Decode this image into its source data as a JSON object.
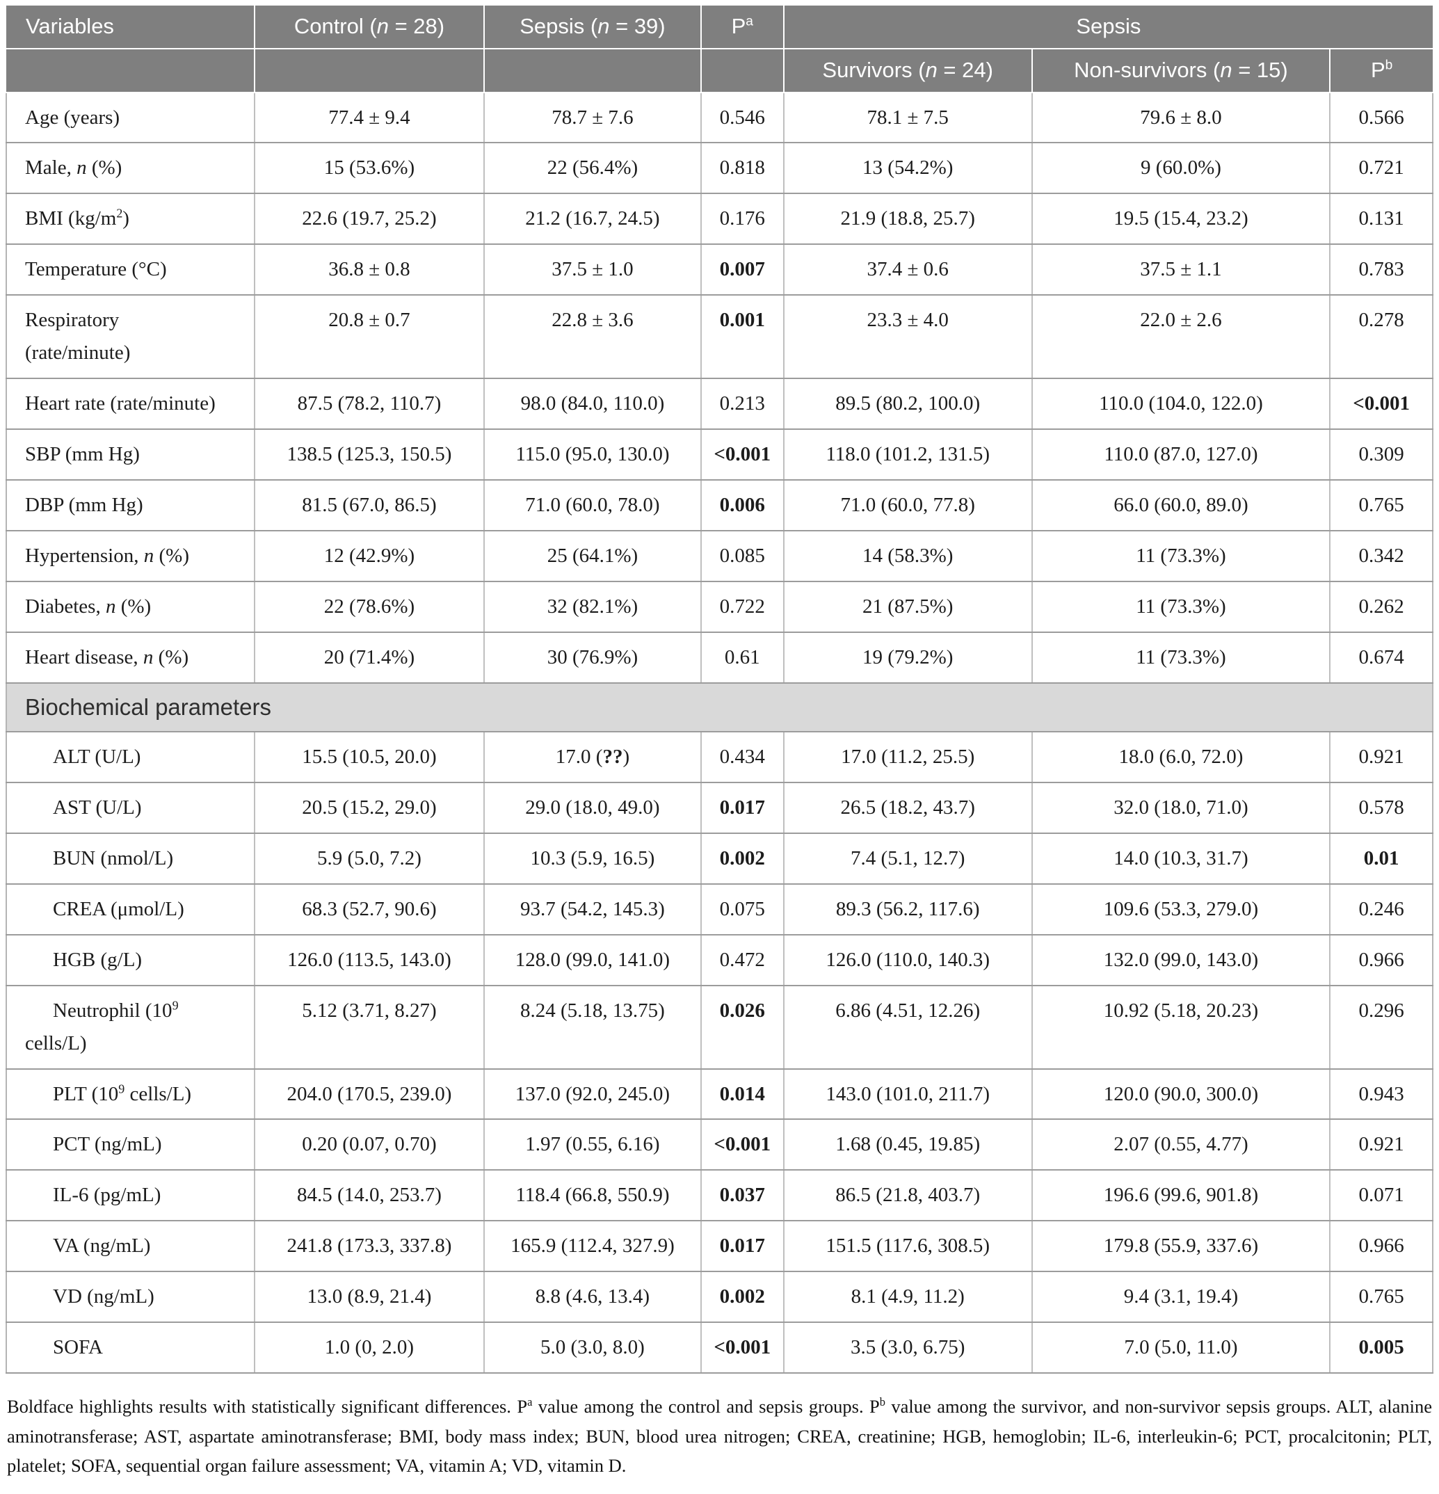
{
  "table": {
    "header": {
      "variables": "Variables",
      "control": "Control (*n* = 28)",
      "sepsis": "Sepsis (*n* = 39)",
      "p_a": "P^a^",
      "sepsis_group": "Sepsis",
      "survivors": "Survivors (*n* = 24)",
      "non_survivors": "Non-survivors (*n* = 15)",
      "p_b": "P^b^"
    },
    "columns": [
      "Variables",
      "Control (n = 28)",
      "Sepsis (n = 39)",
      "Pa",
      "Sepsis Survivors (n = 24)",
      "Sepsis Non-survivors (n = 15)",
      "Pb"
    ],
    "rows": [
      {
        "label": "Age (years)",
        "indent": false,
        "values": [
          "77.4 ± 9.4",
          "78.7 ± 7.6",
          "0.546",
          "78.1 ± 7.5",
          "79.6 ± 8.0",
          "0.566"
        ]
      },
      {
        "label": "Male, *n* (%)",
        "indent": false,
        "values": [
          "15 (53.6%)",
          "22 (56.4%)",
          "0.818",
          "13 (54.2%)",
          "9 (60.0%)",
          "0.721"
        ]
      },
      {
        "label": "BMI (kg/m^2^)",
        "indent": false,
        "values": [
          "22.6 (19.7, 25.2)",
          "21.2 (16.7, 24.5)",
          "0.176",
          "21.9 (18.8, 25.7)",
          "19.5 (15.4, 23.2)",
          "0.131"
        ]
      },
      {
        "label": "Temperature (°C)",
        "indent": false,
        "values": [
          "36.8 ± 0.8",
          "37.5 ± 1.0",
          "**0.007**",
          "37.4 ± 0.6",
          "37.5 ± 1.1",
          "0.783"
        ]
      },
      {
        "label": "Respiratory\n(rate/minute)",
        "indent": false,
        "values": [
          "20.8 ± 0.7",
          "22.8 ± 3.6",
          "**0.001**",
          "23.3 ± 4.0",
          "22.0 ± 2.6",
          "0.278"
        ]
      },
      {
        "label": "Heart rate (rate/minute)",
        "indent": false,
        "values": [
          "87.5 (78.2, 110.7)",
          "98.0 (84.0, 110.0)",
          "0.213",
          "89.5 (80.2, 100.0)",
          "110.0 (104.0, 122.0)",
          "**<0.001**"
        ]
      },
      {
        "label": "SBP (mm Hg)",
        "indent": false,
        "values": [
          "138.5 (125.3, 150.5)",
          "115.0 (95.0, 130.0)",
          "**<0.001**",
          "118.0 (101.2, 131.5)",
          "110.0 (87.0, 127.0)",
          "0.309"
        ]
      },
      {
        "label": "DBP (mm Hg)",
        "indent": false,
        "values": [
          "81.5 (67.0, 86.5)",
          "71.0 (60.0, 78.0)",
          "**0.006**",
          "71.0 (60.0, 77.8)",
          "66.0 (60.0, 89.0)",
          "0.765"
        ]
      },
      {
        "label": "Hypertension, *n* (%)",
        "indent": false,
        "values": [
          "12 (42.9%)",
          "25 (64.1%)",
          "0.085",
          "14 (58.3%)",
          "11 (73.3%)",
          "0.342"
        ]
      },
      {
        "label": "Diabetes, *n* (%)",
        "indent": false,
        "values": [
          "22 (78.6%)",
          "32 (82.1%)",
          "0.722",
          "21 (87.5%)",
          "11 (73.3%)",
          "0.262"
        ]
      },
      {
        "label": "Heart disease, *n* (%)",
        "indent": false,
        "values": [
          "20 (71.4%)",
          "30 (76.9%)",
          "0.61",
          "19 (79.2%)",
          "11 (73.3%)",
          "0.674"
        ]
      },
      {
        "section": true,
        "label": "Biochemical parameters"
      },
      {
        "label": "ALT (U/L)",
        "indent": true,
        "values": [
          "15.5 (10.5, 20.0)",
          "17.0 (**??**)",
          "0.434",
          "17.0 (11.2, 25.5)",
          "18.0 (6.0, 72.0)",
          "0.921"
        ]
      },
      {
        "label": "AST (U/L)",
        "indent": true,
        "values": [
          "20.5 (15.2, 29.0)",
          "29.0 (18.0, 49.0)",
          "**0.017**",
          "26.5 (18.2, 43.7)",
          "32.0 (18.0, 71.0)",
          "0.578"
        ]
      },
      {
        "label": "BUN (nmol/L)",
        "indent": true,
        "values": [
          "5.9 (5.0, 7.2)",
          "10.3 (5.9, 16.5)",
          "**0.002**",
          "7.4 (5.1, 12.7)",
          "14.0 (10.3, 31.7)",
          "**0.01**"
        ]
      },
      {
        "label": "CREA (μmol/L)",
        "indent": true,
        "values": [
          "68.3 (52.7, 90.6)",
          "93.7 (54.2, 145.3)",
          "0.075",
          "89.3 (56.2, 117.6)",
          "109.6 (53.3, 279.0)",
          "0.246"
        ]
      },
      {
        "label": "HGB (g/L)",
        "indent": true,
        "values": [
          "126.0 (113.5, 143.0)",
          "128.0 (99.0, 141.0)",
          "0.472",
          "126.0 (110.0, 140.3)",
          "132.0 (99.0, 143.0)",
          "0.966"
        ]
      },
      {
        "label": "Neutrophil (10^9^\ncells/L)",
        "indent": true,
        "values": [
          "5.12 (3.71, 8.27)",
          "8.24 (5.18, 13.75)",
          "**0.026**",
          "6.86 (4.51, 12.26)",
          "10.92 (5.18, 20.23)",
          "0.296"
        ]
      },
      {
        "label": "PLT (10^9^ cells/L)",
        "indent": true,
        "values": [
          "204.0 (170.5, 239.0)",
          "137.0 (92.0, 245.0)",
          "**0.014**",
          "143.0 (101.0, 211.7)",
          "120.0 (90.0, 300.0)",
          "0.943"
        ]
      },
      {
        "label": "PCT (ng/mL)",
        "indent": true,
        "values": [
          "0.20 (0.07, 0.70)",
          "1.97 (0.55, 6.16)",
          "**<0.001**",
          "1.68 (0.45, 19.85)",
          "2.07 (0.55, 4.77)",
          "0.921"
        ]
      },
      {
        "label": "IL-6 (pg/mL)",
        "indent": true,
        "values": [
          "84.5 (14.0, 253.7)",
          "118.4 (66.8, 550.9)",
          "**0.037**",
          "86.5 (21.8, 403.7)",
          "196.6 (99.6, 901.8)",
          "0.071"
        ]
      },
      {
        "label": "VA (ng/mL)",
        "indent": true,
        "values": [
          "241.8 (173.3, 337.8)",
          "165.9 (112.4, 327.9)",
          "**0.017**",
          "151.5 (117.6, 308.5)",
          "179.8 (55.9, 337.6)",
          "0.966"
        ]
      },
      {
        "label": "VD (ng/mL)",
        "indent": true,
        "values": [
          "13.0 (8.9, 21.4)",
          "8.8 (4.6, 13.4)",
          "**0.002**",
          "8.1 (4.9, 11.2)",
          "9.4 (3.1, 19.4)",
          "0.765"
        ]
      },
      {
        "label": "SOFA",
        "indent": true,
        "values": [
          "1.0 (0, 2.0)",
          "5.0 (3.0, 8.0)",
          "**<0.001**",
          "3.5 (3.0, 6.75)",
          "7.0 (5.0, 11.0)",
          "**0.005**"
        ]
      }
    ]
  },
  "colors": {
    "header_bg": "#7f7f7f",
    "header_text": "#ffffff",
    "section_bg": "#d9d9d9",
    "border_horizontal": "#9c9c9c",
    "border_vertical": "#bfbfbf"
  },
  "footnote": "Boldface highlights results with statistically significant differences. P^a^ value among the control and sepsis groups. P^b^ value among the survivor, and non-survivor sepsis groups. ALT, alanine aminotransferase; AST, aspartate aminotransferase; BMI, body mass index; BUN, blood urea nitrogen; CREA, creatinine; HGB, hemoglobin; IL-6, interleukin-6; PCT, procalcitonin; PLT, platelet; SOFA, sequential organ failure assessment; VA, vitamin A; VD, vitamin D."
}
